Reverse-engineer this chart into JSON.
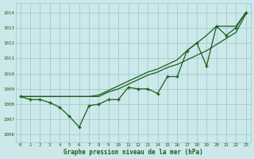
{
  "xlabel": "Graphe pression niveau de la mer (hPa)",
  "x_values": [
    0,
    1,
    2,
    3,
    4,
    5,
    6,
    7,
    8,
    9,
    10,
    11,
    12,
    13,
    14,
    15,
    16,
    17,
    18,
    19,
    20,
    21,
    22,
    23
  ],
  "series_main": [
    1008.5,
    1008.3,
    1008.3,
    1008.1,
    1007.8,
    1007.2,
    1006.5,
    1007.9,
    1008.0,
    1008.3,
    1008.3,
    1009.1,
    1009.0,
    1009.0,
    1008.7,
    1009.8,
    1009.8,
    1011.5,
    1012.0,
    1010.5,
    1013.1,
    1012.5,
    1013.0,
    1014.0
  ],
  "series_line1": [
    1008.5,
    1008.5,
    1008.5,
    1008.5,
    1008.5,
    1008.5,
    1008.5,
    1008.5,
    1008.5,
    1008.8,
    1009.0,
    1009.3,
    1009.6,
    1009.9,
    1010.1,
    1010.4,
    1010.6,
    1010.9,
    1011.2,
    1011.5,
    1011.9,
    1012.3,
    1012.7,
    1013.9
  ],
  "series_line2": [
    1008.5,
    1008.5,
    1008.5,
    1008.5,
    1008.5,
    1008.5,
    1008.5,
    1008.5,
    1008.6,
    1008.9,
    1009.2,
    1009.5,
    1009.8,
    1010.1,
    1010.3,
    1010.6,
    1010.9,
    1011.5,
    1012.0,
    1012.5,
    1013.1,
    1013.1,
    1013.1,
    1014.0
  ],
  "line_color": "#1a5e1a",
  "bg_color": "#cce8ea",
  "grid_color": "#98c8c8",
  "text_color": "#1a5e1a",
  "ylim": [
    1005.5,
    1014.6
  ],
  "yticks": [
    1006,
    1007,
    1008,
    1009,
    1010,
    1011,
    1012,
    1013,
    1014
  ],
  "linewidth": 0.9,
  "marker_size": 3.5
}
